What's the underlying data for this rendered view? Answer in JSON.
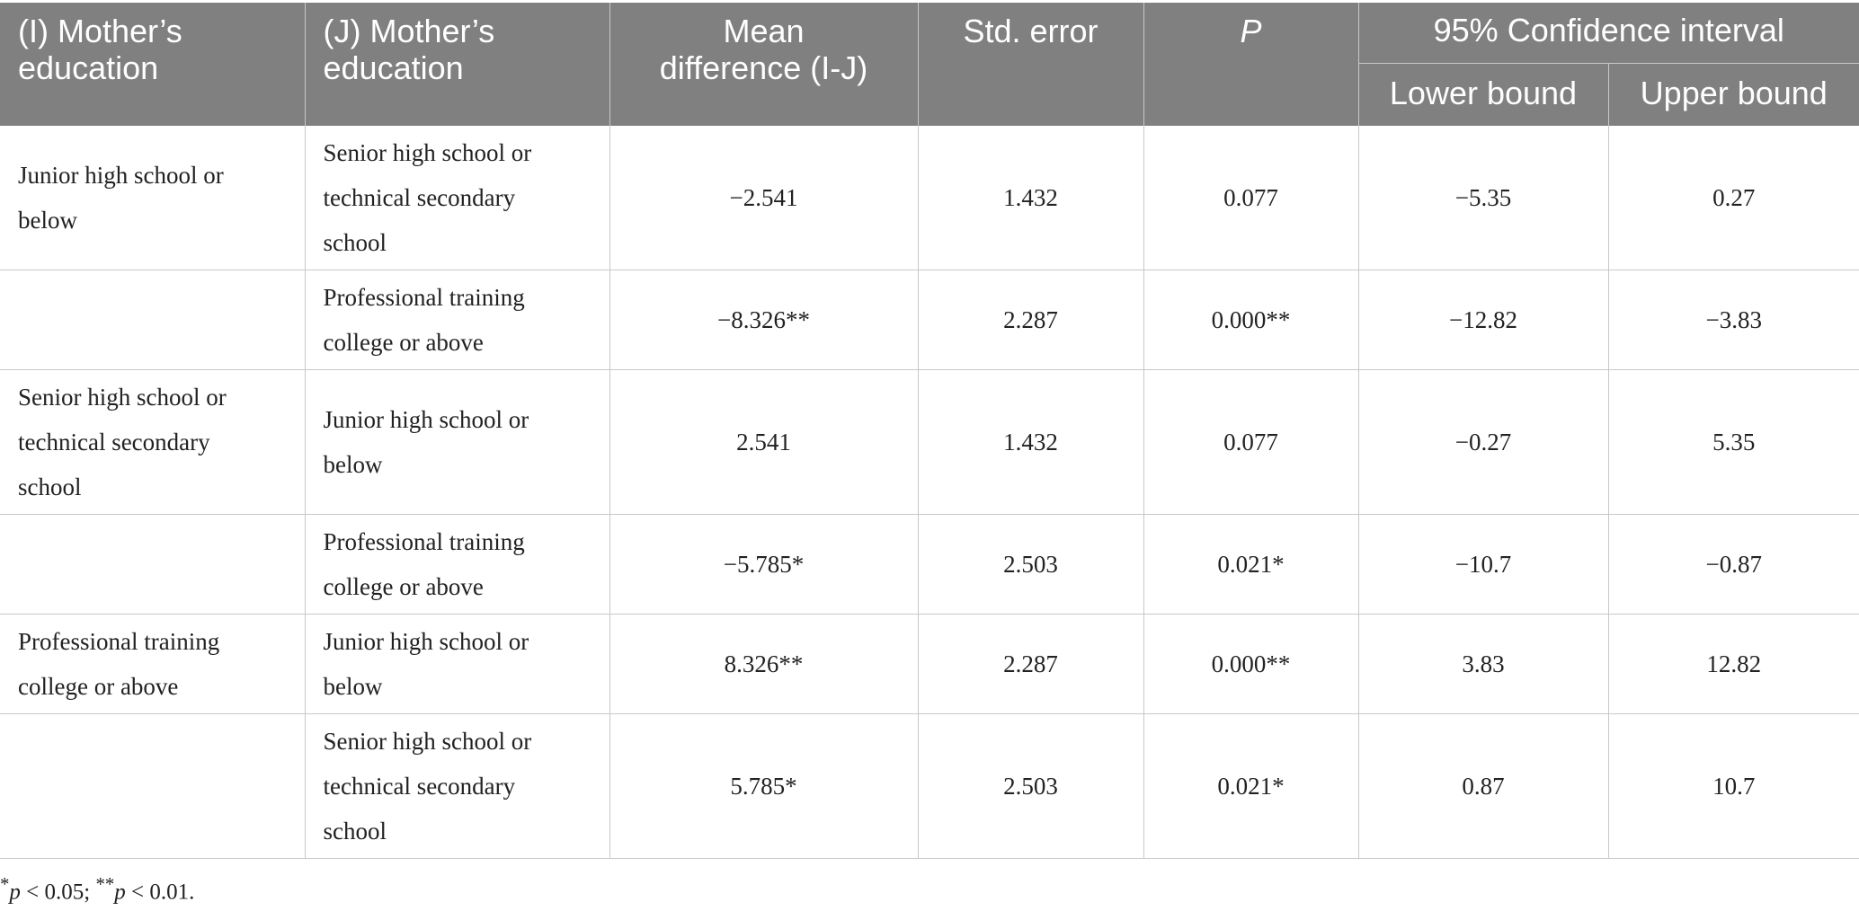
{
  "header": {
    "col_i": "(I) Mother’s education",
    "col_j": "(J) Mother’s education",
    "col_mean": "Mean difference (I-J)",
    "col_se": "Std. error",
    "col_p": "P",
    "col_ci": "95% Confidence interval",
    "col_lower": "Lower bound",
    "col_upper": "Upper bound"
  },
  "rows": [
    {
      "i": "Junior high school or below",
      "j": "Senior high school or technical secondary school",
      "mean": "−2.541",
      "se": "1.432",
      "p": "0.077",
      "lower": "−5.35",
      "upper": "0.27"
    },
    {
      "i": "",
      "j": "Professional training college or above",
      "mean": "−8.326**",
      "se": "2.287",
      "p": "0.000**",
      "lower": "−12.82",
      "upper": "−3.83"
    },
    {
      "i": "Senior high school or technical secondary school",
      "j": "Junior high school or below",
      "mean": "2.541",
      "se": "1.432",
      "p": "0.077",
      "lower": "−0.27",
      "upper": "5.35"
    },
    {
      "i": "",
      "j": "Professional training college or above",
      "mean": "−5.785*",
      "se": "2.503",
      "p": "0.021*",
      "lower": "−10.7",
      "upper": "−0.87"
    },
    {
      "i": "Professional training college or above",
      "j": "Junior high school or below",
      "mean": "8.326**",
      "se": "2.287",
      "p": "0.000**",
      "lower": "3.83",
      "upper": "12.82"
    },
    {
      "i": "",
      "j": "Senior high school or technical secondary school",
      "mean": "5.785*",
      "se": "2.503",
      "p": "0.021*",
      "lower": "0.87",
      "upper": "10.7"
    }
  ],
  "footnote": {
    "star1": "*",
    "p1": "p",
    "t1": " < 0.05; ",
    "star2": "**",
    "p2": "p",
    "t2": " < 0.01."
  },
  "colors": {
    "header_bg": "#808080",
    "header_text": "#ffffff",
    "grid": "#c8c8c8"
  }
}
